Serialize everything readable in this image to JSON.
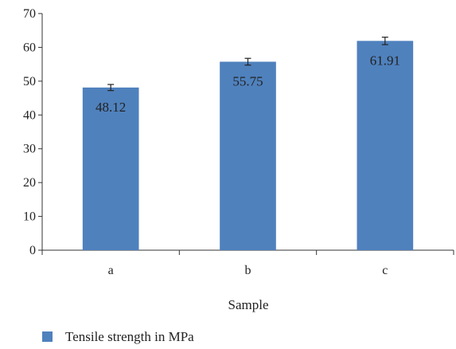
{
  "chart_data": {
    "type": "bar",
    "categories": [
      "a",
      "b",
      "c"
    ],
    "series": [
      {
        "name": "Tensile strength in MPa",
        "values": [
          48.12,
          55.75,
          61.91
        ],
        "errors": [
          0.9,
          1.0,
          1.1
        ],
        "color": "#4f81bd"
      }
    ],
    "data_labels": [
      "48.12",
      "55.75",
      "61.91"
    ],
    "yticks": [
      "0",
      "10",
      "20",
      "30",
      "40",
      "50",
      "60",
      "70"
    ],
    "ylim": [
      0,
      70
    ],
    "xlabel": "Sample",
    "ylabel": "",
    "title": "",
    "grid": false,
    "legend_position": "bottom-left"
  }
}
